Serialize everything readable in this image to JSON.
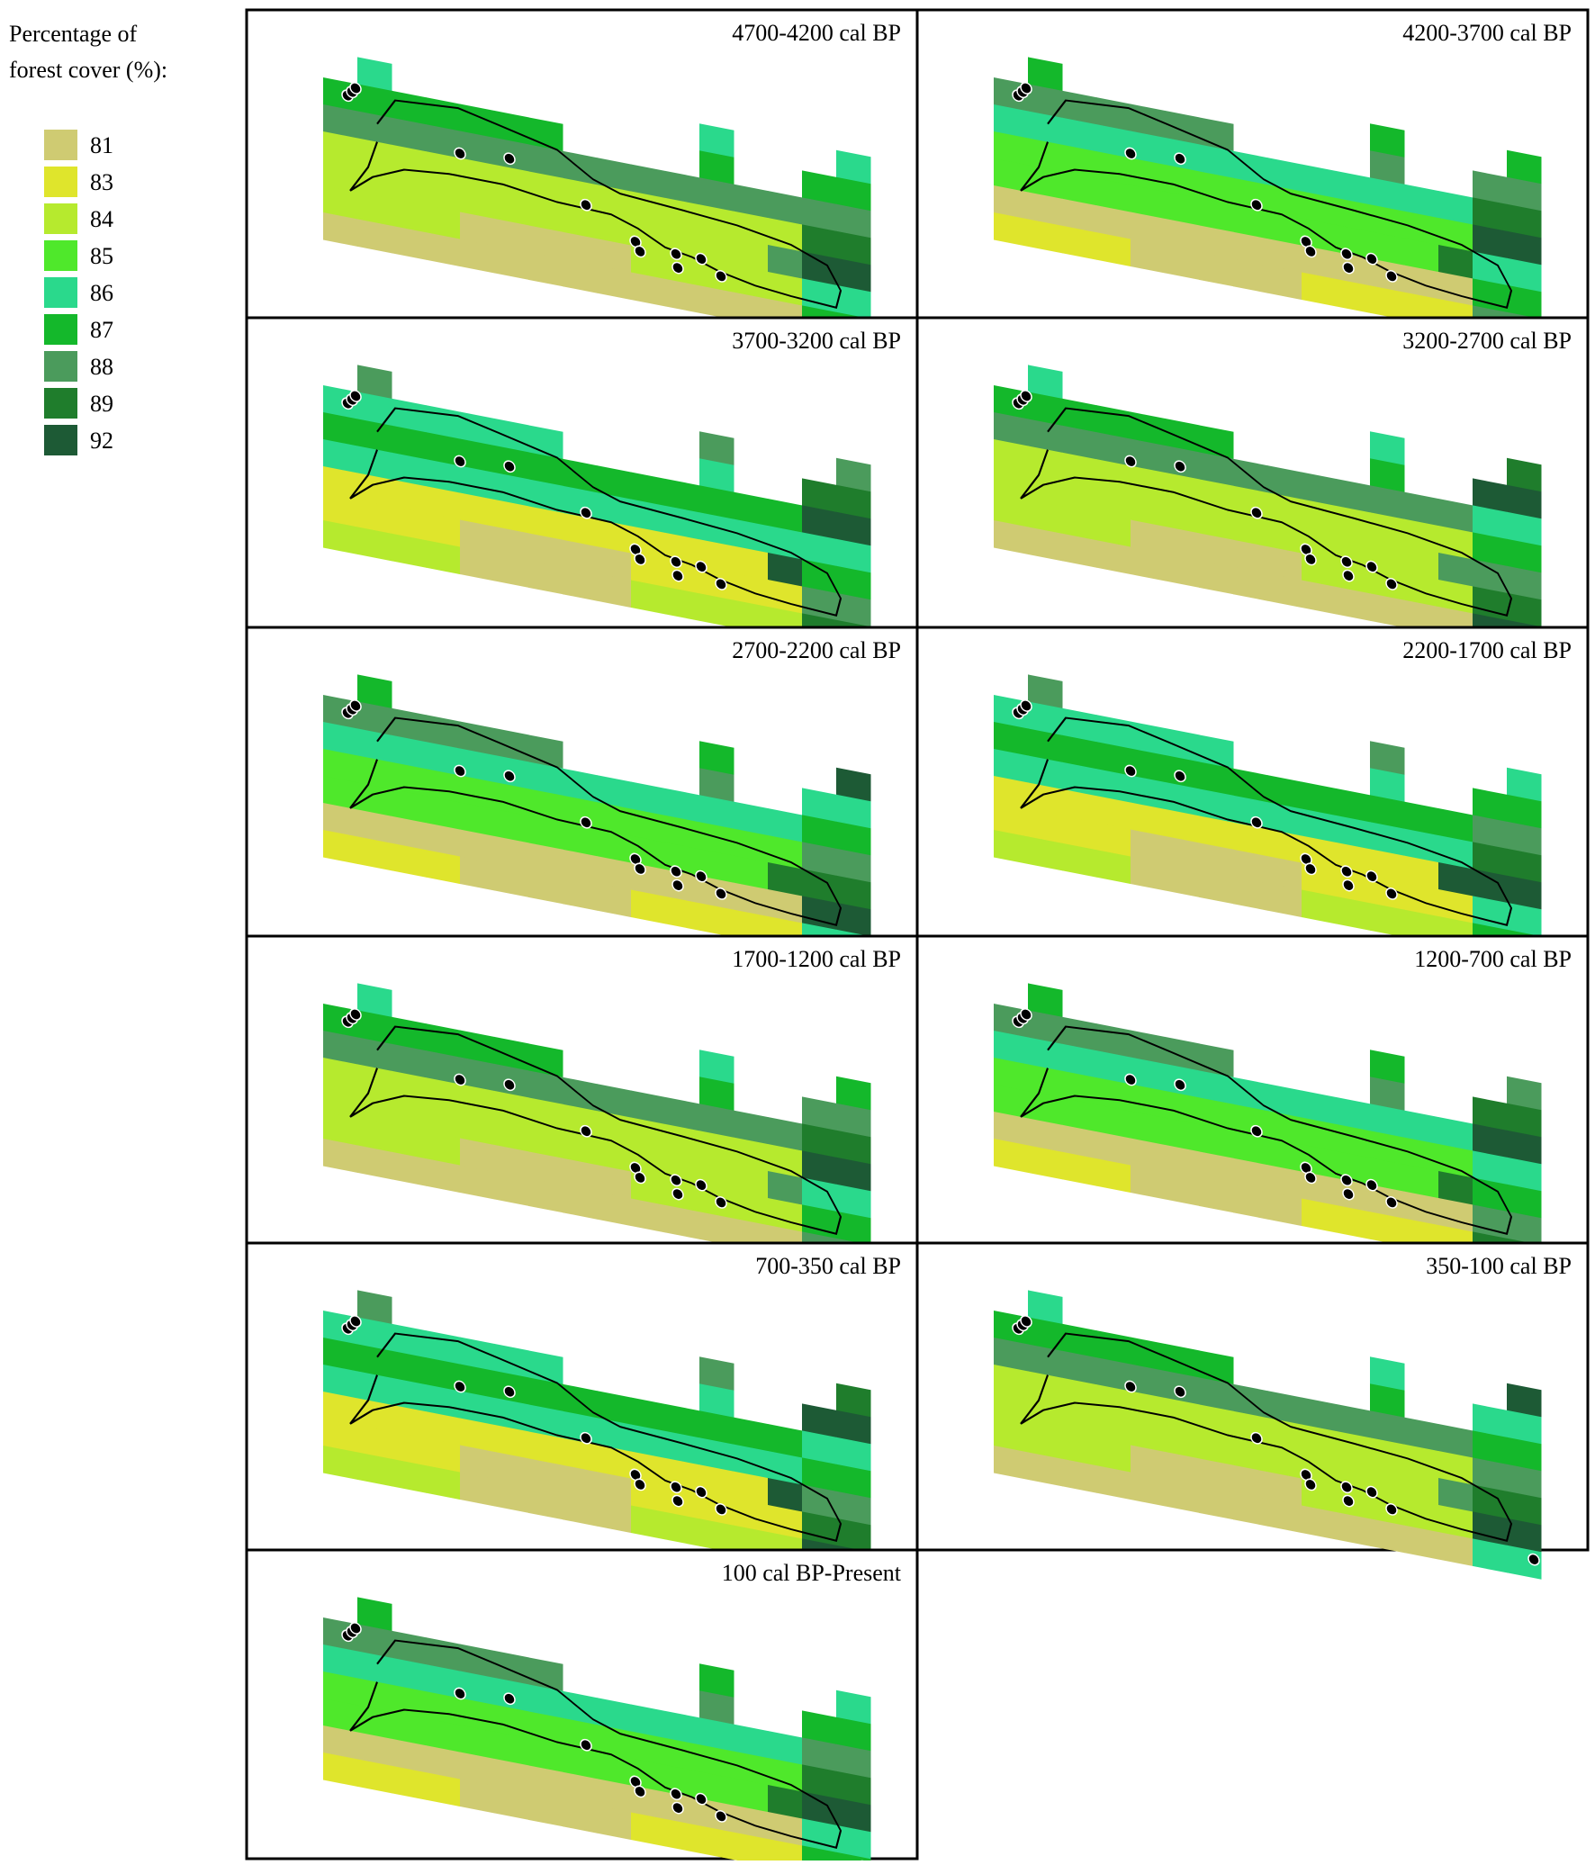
{
  "legend": {
    "title_lines": [
      "Percentage of",
      "forest cover (%):"
    ],
    "items": [
      {
        "label": 81,
        "color": "#cfcb72"
      },
      {
        "label": 83,
        "color": "#dfe52c"
      },
      {
        "label": 84,
        "color": "#b6ea2e"
      },
      {
        "label": 85,
        "color": "#4fe82b"
      },
      {
        "label": 86,
        "color": "#2ad98c"
      },
      {
        "label": 87,
        "color": "#14b82b"
      },
      {
        "label": 88,
        "color": "#4b9b5c"
      },
      {
        "label": 89,
        "color": "#1f7d2c"
      },
      {
        "label": 92,
        "color": "#1d5a35"
      }
    ]
  },
  "panels": [
    {
      "title": "4700-4200 cal BP"
    },
    {
      "title": "4200-3700 cal BP"
    },
    {
      "title": "3700-3200 cal BP"
    },
    {
      "title": "3200-2700 cal BP"
    },
    {
      "title": "2700-2200 cal BP"
    },
    {
      "title": "2200-1700 cal BP"
    },
    {
      "title": "1700-1200 cal BP"
    },
    {
      "title": "1200-700 cal BP"
    },
    {
      "title": "700-350 cal BP"
    },
    {
      "title": "350-100 cal BP"
    },
    {
      "title": "100 cal BP-Present"
    }
  ]
}
